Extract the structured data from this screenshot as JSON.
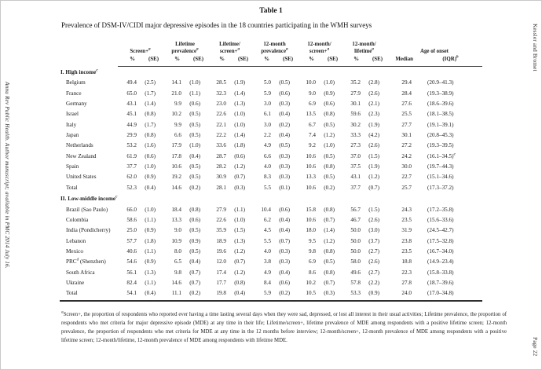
{
  "page": {
    "side_left": "Annu Rev Public Health. Author manuscript; available in PMC 2014 July 16.",
    "side_right_top": "Kessler and Bromet",
    "side_right_bottom": "Page 22"
  },
  "table": {
    "label": "Table 1",
    "caption": "Prevalence of DSM-IV/CIDI major depressive episodes in the 18 countries participating in the WMH surveys",
    "header": {
      "groups": [
        {
          "lines": [
            "Screen+"
          ],
          "sup": "a"
        },
        {
          "lines": [
            "Lifetime",
            "prevalence"
          ],
          "sup": "a"
        },
        {
          "lines": [
            "Lifetime/",
            "screen+"
          ],
          "sup": "a"
        },
        {
          "lines": [
            "12-month",
            "prevalence"
          ],
          "sup": "a"
        },
        {
          "lines": [
            "12-month/",
            "screen+"
          ],
          "sup": "a"
        },
        {
          "lines": [
            "12-month/",
            "lifetime"
          ],
          "sup": "a"
        },
        {
          "lines": [
            "Age of onset"
          ],
          "sup": ""
        }
      ],
      "subcols": [
        {
          "label": "%"
        },
        {
          "label": "(SE)"
        },
        {
          "label": "%"
        },
        {
          "label": "(SE)"
        },
        {
          "label": "%"
        },
        {
          "label": "(SE)"
        },
        {
          "label": "%"
        },
        {
          "label": "(SE)"
        },
        {
          "label": "%"
        },
        {
          "label": "(SE)"
        },
        {
          "label": "%"
        },
        {
          "label": "(SE)"
        },
        {
          "label": "Median"
        },
        {
          "label": "(IQR)",
          "sup": "b"
        }
      ]
    },
    "sections": [
      {
        "title": "I. High income",
        "sup": "c",
        "rows": [
          {
            "name": "Belgium",
            "values": [
              "49.4",
              "(2.5)",
              "14.1",
              "(1.0)",
              "28.5",
              "(1.9)",
              "5.0",
              "(0.5)",
              "10.0",
              "(1.0)",
              "35.2",
              "(2.8)",
              "29.4",
              "(20.9–41.3)"
            ]
          },
          {
            "name": "France",
            "values": [
              "65.0",
              "(1.7)",
              "21.0",
              "(1.1)",
              "32.3",
              "(1.4)",
              "5.9",
              "(0.6)",
              "9.0",
              "(0.9)",
              "27.9",
              "(2.6)",
              "28.4",
              "(19.3–38.9)"
            ]
          },
          {
            "name": "Germany",
            "values": [
              "43.1",
              "(1.4)",
              "9.9",
              "(0.6)",
              "23.0",
              "(1.3)",
              "3.0",
              "(0.3)",
              "6.9",
              "(0.6)",
              "30.1",
              "(2.1)",
              "27.6",
              "(18.6–39.6)"
            ]
          },
          {
            "name": "Israel",
            "values": [
              "45.1",
              "(0.8)",
              "10.2",
              "(0.5)",
              "22.6",
              "(1.0)",
              "6.1",
              "(0.4)",
              "13.5",
              "(0.8)",
              "59.6",
              "(2.3)",
              "25.5",
              "(18.1–38.5)"
            ]
          },
          {
            "name": "Italy",
            "values": [
              "44.9",
              "(1.7)",
              "9.9",
              "(0.5)",
              "22.1",
              "(1.0)",
              "3.0",
              "(0.2)",
              "6.7",
              "(0.5)",
              "30.2",
              "(1.9)",
              "27.7",
              "(19.1–39.1)"
            ]
          },
          {
            "name": "Japan",
            "values": [
              "29.9",
              "(0.8)",
              "6.6",
              "(0.5)",
              "22.2",
              "(1.4)",
              "2.2",
              "(0.4)",
              "7.4",
              "(1.2)",
              "33.3",
              "(4.2)",
              "30.1",
              "(20.8–45.3)"
            ]
          },
          {
            "name": "Netherlands",
            "values": [
              "53.2",
              "(1.6)",
              "17.9",
              "(1.0)",
              "33.6",
              "(1.8)",
              "4.9",
              "(0.5)",
              "9.2",
              "(1.0)",
              "27.3",
              "(2.6)",
              "27.2",
              "(19.3–39.5)"
            ]
          },
          {
            "name": "New Zealand",
            "values": [
              "61.9",
              "(0.6)",
              "17.8",
              "(0.4)",
              "28.7",
              "(0.6)",
              "6.6",
              "(0.3)",
              "10.6",
              "(0.5)",
              "37.0",
              "(1.5)",
              "24.2",
              "(16.1–34.5)"
            ],
            "last_sup": "e"
          },
          {
            "name": "Spain",
            "values": [
              "37.7",
              "(1.0)",
              "10.6",
              "(0.5)",
              "28.2",
              "(1.2)",
              "4.0",
              "(0.3)",
              "10.6",
              "(0.8)",
              "37.5",
              "(1.9)",
              "30.0",
              "(19.7–44.3)"
            ]
          },
          {
            "name": "United States",
            "values": [
              "62.0",
              "(0.9)",
              "19.2",
              "(0.5)",
              "30.9",
              "(0.7)",
              "8.3",
              "(0.3)",
              "13.3",
              "(0.5)",
              "43.1",
              "(1.2)",
              "22.7",
              "(15.1–34.6)"
            ]
          },
          {
            "name": "Total",
            "values": [
              "52.3",
              "(0.4)",
              "14.6",
              "(0.2)",
              "28.1",
              "(0.3)",
              "5.5",
              "(0.1)",
              "10.6",
              "(0.2)",
              "37.7",
              "(0.7)",
              "25.7",
              "(17.3–37.2)"
            ]
          }
        ]
      },
      {
        "title": "II. Low-middle income",
        "sup": "c",
        "rows": [
          {
            "name": "Brazil (Sao Paulo)",
            "values": [
              "66.0",
              "(1.0)",
              "18.4",
              "(0.8)",
              "27.9",
              "(1.1)",
              "10.4",
              "(0.6)",
              "15.8",
              "(0.8)",
              "56.7",
              "(1.5)",
              "24.3",
              "(17.2–35.8)"
            ]
          },
          {
            "name": "Colombia",
            "values": [
              "58.6",
              "(1.1)",
              "13.3",
              "(0.6)",
              "22.6",
              "(1.0)",
              "6.2",
              "(0.4)",
              "10.6",
              "(0.7)",
              "46.7",
              "(2.6)",
              "23.5",
              "(15.6–33.6)"
            ]
          },
          {
            "name": "India (Pondicherry)",
            "values": [
              "25.0",
              "(0.9)",
              "9.0",
              "(0.5)",
              "35.9",
              "(1.5)",
              "4.5",
              "(0.4)",
              "18.0",
              "(1.4)",
              "50.0",
              "(3.0)",
              "31.9",
              "(24.5–42.7)"
            ]
          },
          {
            "name": "Lebanon",
            "values": [
              "57.7",
              "(1.8)",
              "10.9",
              "(0.9)",
              "18.9",
              "(1.3)",
              "5.5",
              "(0.7)",
              "9.5",
              "(1.2)",
              "50.0",
              "(3.7)",
              "23.8",
              "(17.5–32.8)"
            ]
          },
          {
            "name": "Mexico",
            "values": [
              "40.6",
              "(1.1)",
              "8.0",
              "(0.5)",
              "19.6",
              "(1.2)",
              "4.0",
              "(0.3)",
              "9.8",
              "(0.8)",
              "50.0",
              "(2.7)",
              "23.5",
              "(16.7–34.0)"
            ]
          },
          {
            "name": "PRC",
            "name_sup": "d",
            "name_suffix": " (Shenzhen)",
            "values": [
              "54.6",
              "(0.9)",
              "6.5",
              "(0.4)",
              "12.0",
              "(0.7)",
              "3.8",
              "(0.3)",
              "6.9",
              "(0.5)",
              "58.0",
              "(2.6)",
              "18.8",
              "(14.9–23.4)"
            ]
          },
          {
            "name": "South Africa",
            "values": [
              "56.1",
              "(1.3)",
              "9.8",
              "(0.7)",
              "17.4",
              "(1.2)",
              "4.9",
              "(0.4)",
              "8.6",
              "(0.8)",
              "49.6",
              "(2.7)",
              "22.3",
              "(15.8–33.8)"
            ]
          },
          {
            "name": "Ukraine",
            "values": [
              "82.4",
              "(1.1)",
              "14.6",
              "(0.7)",
              "17.7",
              "(0.8)",
              "8.4",
              "(0.6)",
              "10.2",
              "(0.7)",
              "57.8",
              "(2.2)",
              "27.8",
              "(18.7–39.6)"
            ]
          },
          {
            "name": "Total",
            "values": [
              "54.1",
              "(0.4)",
              "11.1",
              "(0.2)",
              "19.8",
              "(0.4)",
              "5.9",
              "(0.2)",
              "10.5",
              "(0.3)",
              "53.3",
              "(0.9)",
              "24.0",
              "(17.0–34.8)"
            ]
          }
        ]
      }
    ]
  },
  "footnote": {
    "sup": "a",
    "text": "Screen+, the proportion of respondents who reported ever having a time lasting several days when they were sad, depressed, or lost all interest in their usual activities; Lifetime prevalence, the proportion of respondents who met criteria for major depressive episode (MDE) at any time in their life; Lifetime/screen+, lifetime prevalence of MDE among respondents with a positive lifetime screen; 12-month prevalence, the proportion of respondents who met criteria for MDE at any time in the 12 months before interview; 12-month/screen+, 12-month prevalence of MDE among respondents with a positive lifetime screen; 12-month/lifetime, 12-month prevalence of MDE among respondents with lifetime MDE."
  }
}
